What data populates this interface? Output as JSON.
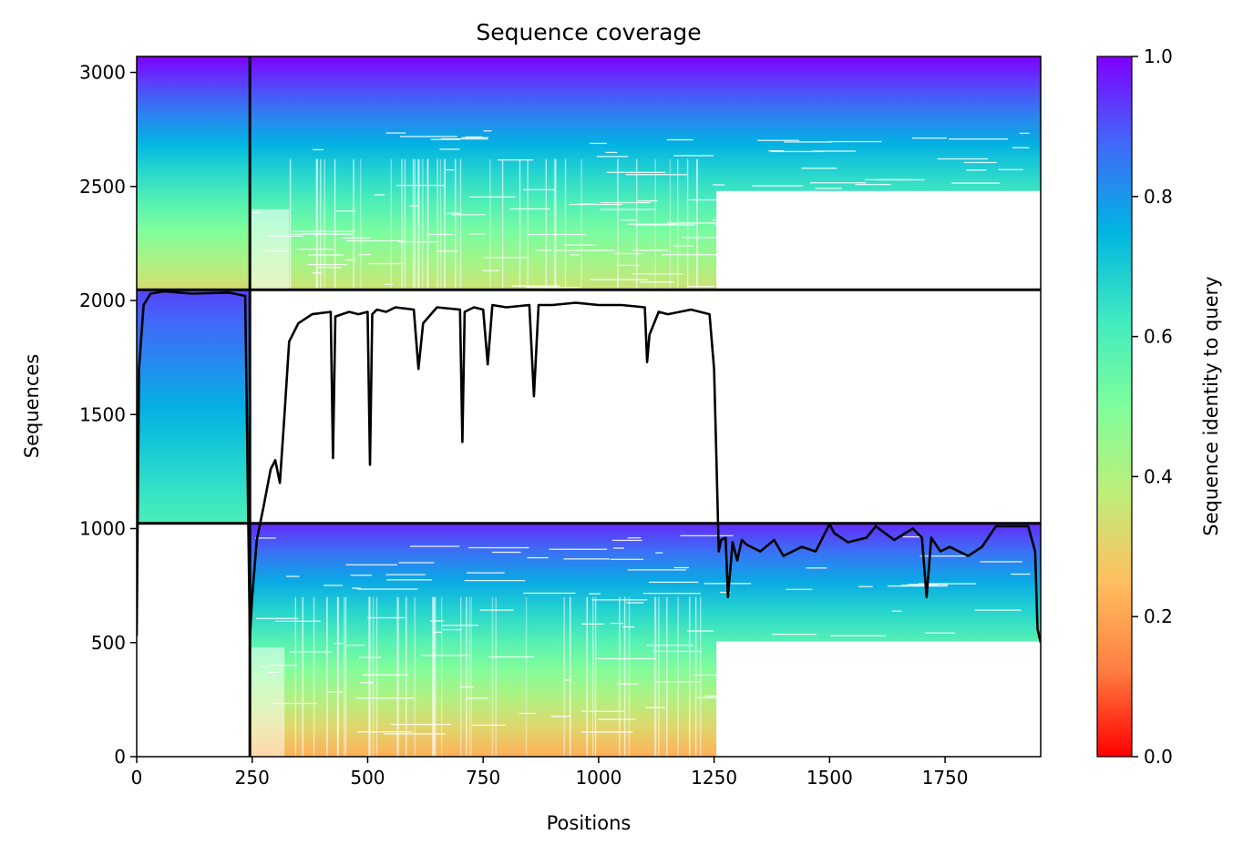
{
  "chart_data": {
    "type": "heatmap",
    "title": "Sequence coverage",
    "xlabel": "Positions",
    "ylabel": "Sequences",
    "xlim": [
      0,
      1957
    ],
    "ylim": [
      0,
      3070
    ],
    "xticks": [
      0,
      250,
      500,
      750,
      1000,
      1250,
      1500,
      1750
    ],
    "yticks": [
      0,
      500,
      1000,
      1500,
      2000,
      2500,
      3000
    ],
    "colorbar": {
      "label": "Sequence identity to query",
      "colormap": "rainbow",
      "range": [
        0,
        1
      ],
      "ticks": [
        "0.0",
        "0.2",
        "0.4",
        "0.6",
        "0.8",
        "1.0"
      ],
      "stops": [
        "#ff0000",
        "#ff7f41",
        "#ffbf5f",
        "#bfed79",
        "#7ffe9c",
        "#3feac0",
        "#00b5e2",
        "#4169f8",
        "#7f00ff"
      ]
    },
    "domain_boundaries": {
      "positions": [
        245
      ],
      "sequences": [
        1023,
        2047
      ]
    },
    "blocks": [
      {
        "name": "block-1-top-left",
        "x": [
          0,
          245
        ],
        "y": [
          2047,
          3070
        ],
        "identity_bottom": 0.33,
        "identity_top": 1.0
      },
      {
        "name": "block-1-top-right",
        "x": [
          245,
          1957
        ],
        "y": [
          2047,
          3070
        ],
        "identity_bottom": 0.35,
        "identity_top": 1.0
      },
      {
        "name": "block-2-middle-left",
        "x": [
          0,
          245
        ],
        "y": [
          1023,
          2047
        ],
        "identity_bottom": 0.6,
        "identity_top": 0.92
      },
      {
        "name": "block-3-bottom-right",
        "x": [
          245,
          1957
        ],
        "y": [
          0,
          1023
        ],
        "identity_bottom": 0.22,
        "identity_top": 0.95
      }
    ],
    "coverage_line": {
      "color": "#000000",
      "x": [
        0,
        5,
        15,
        30,
        60,
        120,
        200,
        235,
        245,
        250,
        260,
        275,
        290,
        300,
        310,
        320,
        330,
        350,
        380,
        420,
        425,
        430,
        460,
        480,
        500,
        505,
        510,
        520,
        540,
        560,
        600,
        610,
        620,
        650,
        700,
        705,
        710,
        730,
        750,
        760,
        770,
        800,
        850,
        860,
        870,
        900,
        950,
        1000,
        1050,
        1100,
        1105,
        1110,
        1130,
        1150,
        1200,
        1240,
        1250,
        1255,
        1260,
        1265,
        1275,
        1280,
        1290,
        1300,
        1310,
        1320,
        1350,
        1380,
        1400,
        1440,
        1470,
        1500,
        1510,
        1540,
        1580,
        1600,
        1640,
        1680,
        1700,
        1710,
        1720,
        1740,
        1760,
        1800,
        1830,
        1860,
        1900,
        1930,
        1945,
        1950,
        1957
      ],
      "y": [
        530,
        1700,
        1980,
        2030,
        2040,
        2030,
        2035,
        2020,
        520,
        700,
        950,
        1100,
        1260,
        1300,
        1200,
        1500,
        1820,
        1900,
        1940,
        1950,
        1310,
        1930,
        1950,
        1940,
        1950,
        1280,
        1940,
        1960,
        1950,
        1970,
        1960,
        1700,
        1900,
        1970,
        1960,
        1380,
        1950,
        1970,
        1960,
        1720,
        1980,
        1970,
        1980,
        1580,
        1980,
        1980,
        1990,
        1980,
        1980,
        1970,
        1730,
        1850,
        1950,
        1940,
        1960,
        1940,
        1700,
        1300,
        900,
        950,
        960,
        700,
        940,
        860,
        950,
        930,
        900,
        950,
        880,
        920,
        900,
        1020,
        980,
        940,
        960,
        1010,
        950,
        1000,
        960,
        700,
        960,
        900,
        920,
        880,
        920,
        1010,
        1010,
        1010,
        900,
        560,
        500
      ]
    }
  }
}
